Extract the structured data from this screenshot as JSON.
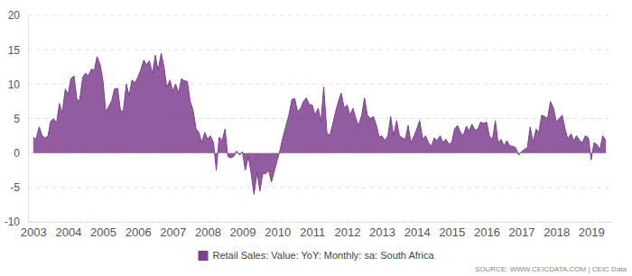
{
  "chart_data": {
    "type": "area",
    "x": [
      2003,
      2003.08,
      2003.17,
      2003.25,
      2003.33,
      2003.42,
      2003.5,
      2003.58,
      2003.67,
      2003.75,
      2003.83,
      2003.92,
      2004,
      2004.08,
      2004.17,
      2004.25,
      2004.33,
      2004.42,
      2004.5,
      2004.58,
      2004.67,
      2004.75,
      2004.83,
      2004.92,
      2005,
      2005.08,
      2005.17,
      2005.25,
      2005.33,
      2005.42,
      2005.5,
      2005.58,
      2005.67,
      2005.75,
      2005.83,
      2005.92,
      2006,
      2006.08,
      2006.17,
      2006.25,
      2006.33,
      2006.42,
      2006.5,
      2006.58,
      2006.67,
      2006.75,
      2006.83,
      2006.92,
      2007,
      2007.08,
      2007.17,
      2007.25,
      2007.33,
      2007.42,
      2007.5,
      2007.58,
      2007.67,
      2007.75,
      2007.83,
      2007.92,
      2008,
      2008.08,
      2008.17,
      2008.25,
      2008.33,
      2008.42,
      2008.5,
      2008.58,
      2008.67,
      2008.75,
      2008.83,
      2008.92,
      2009,
      2009.08,
      2009.17,
      2009.25,
      2009.33,
      2009.42,
      2009.5,
      2009.58,
      2009.67,
      2009.75,
      2009.83,
      2009.92,
      2010,
      2010.08,
      2010.17,
      2010.25,
      2010.33,
      2010.42,
      2010.5,
      2010.58,
      2010.67,
      2010.75,
      2010.83,
      2010.92,
      2011,
      2011.08,
      2011.17,
      2011.25,
      2011.33,
      2011.42,
      2011.5,
      2011.58,
      2011.67,
      2011.75,
      2011.83,
      2011.92,
      2012,
      2012.08,
      2012.17,
      2012.25,
      2012.33,
      2012.42,
      2012.5,
      2012.58,
      2012.67,
      2012.75,
      2012.83,
      2012.92,
      2013,
      2013.08,
      2013.17,
      2013.25,
      2013.33,
      2013.42,
      2013.5,
      2013.58,
      2013.67,
      2013.75,
      2013.83,
      2013.92,
      2014,
      2014.08,
      2014.17,
      2014.25,
      2014.33,
      2014.42,
      2014.5,
      2014.58,
      2014.67,
      2014.75,
      2014.83,
      2014.92,
      2015,
      2015.08,
      2015.17,
      2015.25,
      2015.33,
      2015.42,
      2015.5,
      2015.58,
      2015.67,
      2015.75,
      2015.83,
      2015.92,
      2016,
      2016.08,
      2016.17,
      2016.25,
      2016.33,
      2016.42,
      2016.5,
      2016.58,
      2016.67,
      2016.75,
      2016.83,
      2016.92,
      2017,
      2017.08,
      2017.17,
      2017.25,
      2017.33,
      2017.42,
      2017.5,
      2017.58,
      2017.67,
      2017.75,
      2017.83,
      2017.92,
      2018,
      2018.08,
      2018.17,
      2018.25,
      2018.33,
      2018.42,
      2018.5,
      2018.58,
      2018.67,
      2018.75,
      2018.83,
      2018.92,
      2019,
      2019.08,
      2019.17,
      2019.25,
      2019.33,
      2019.42
    ],
    "series": [
      {
        "name": "Retail Sales: Value: YoY: Monthly: sa: South Africa",
        "color": "#7e3f8f",
        "values": [
          2.3,
          2.0,
          3.8,
          2.6,
          2.2,
          2.4,
          4.6,
          5.0,
          4.4,
          7.2,
          5.8,
          9.3,
          8.5,
          10.8,
          11.2,
          7.8,
          7.6,
          11.0,
          11.6,
          11.2,
          12.2,
          12.0,
          14.0,
          12.8,
          10.5,
          6.0,
          6.8,
          7.6,
          9.3,
          9.4,
          6.2,
          6.0,
          10.0,
          8.3,
          10.6,
          10.2,
          11.0,
          12.0,
          13.5,
          12.8,
          13.4,
          11.5,
          14.2,
          12.0,
          14.5,
          12.5,
          9.5,
          10.6,
          9.0,
          10.0,
          8.7,
          10.8,
          10.5,
          10.4,
          7.5,
          6.3,
          3.5,
          3.0,
          1.5,
          3.0,
          2.0,
          2.5,
          1.5,
          -2.5,
          2.3,
          1.8,
          3.5,
          -0.5,
          -0.7,
          -0.5,
          0.3,
          -0.3,
          0.2,
          -2.5,
          -0.5,
          -3.0,
          -6.0,
          -2.8,
          -5.5,
          -3.0,
          -3.0,
          -2.5,
          -4.2,
          -2.5,
          -1.0,
          0.5,
          2.5,
          4.0,
          5.5,
          7.8,
          7.9,
          6.0,
          6.5,
          7.5,
          8.0,
          7.0,
          7.0,
          5.5,
          6.5,
          4.5,
          9.6,
          3.0,
          2.5,
          4.0,
          6.0,
          7.5,
          8.7,
          6.5,
          7.0,
          5.5,
          6.5,
          5.0,
          4.0,
          5.5,
          8.0,
          5.5,
          5.0,
          5.3,
          4.2,
          2.3,
          2.5,
          1.8,
          2.5,
          5.3,
          2.5,
          4.7,
          2.5,
          2.2,
          2.0,
          4.0,
          1.5,
          2.5,
          3.5,
          4.7,
          2.0,
          2.5,
          1.5,
          1.0,
          2.2,
          1.8,
          2.5,
          1.5,
          2.0,
          1.3,
          1.5,
          3.5,
          4.0,
          3.0,
          2.5,
          3.9,
          3.2,
          4.2,
          3.3,
          3.5,
          4.5,
          4.3,
          4.5,
          2.5,
          2.0,
          4.7,
          1.5,
          2.0,
          1.0,
          1.8,
          1.0,
          1.0,
          0.8,
          -0.3,
          0.2,
          0.5,
          0.8,
          3.8,
          1.5,
          3.5,
          3.0,
          5.5,
          5.3,
          5.0,
          7.5,
          6.5,
          4.5,
          5.0,
          5.5,
          3.5,
          2.0,
          2.8,
          1.8,
          2.5,
          1.8,
          1.5,
          2.5,
          2.2,
          -1.0,
          1.5,
          1.2,
          0.5,
          2.5,
          1.8
        ]
      }
    ],
    "xlim": [
      2002.85,
      2019.6
    ],
    "xticks": [
      2003,
      2004,
      2005,
      2006,
      2007,
      2008,
      2009,
      2010,
      2011,
      2012,
      2013,
      2014,
      2015,
      2016,
      2017,
      2018,
      2019
    ],
    "ylim": [
      -10,
      20
    ],
    "yticks": [
      -10,
      -5,
      0,
      5,
      10,
      15,
      20
    ],
    "grid": true,
    "legend": "bottom",
    "annotations": [
      "SOURCE: WWW.CEICDATA.COM | CEIC Data"
    ]
  }
}
